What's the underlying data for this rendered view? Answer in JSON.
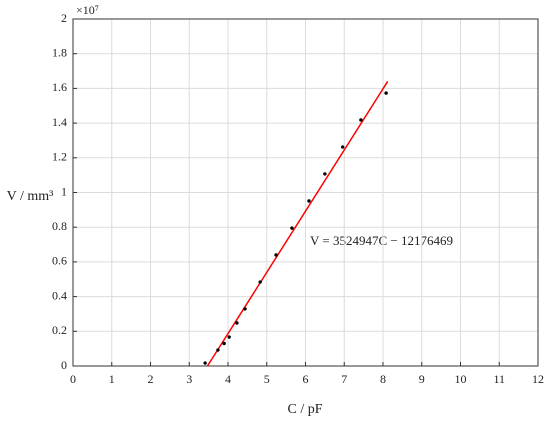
{
  "chart_data": {
    "type": "scatter",
    "x_label": "C / pF",
    "y_label": "V / mm³",
    "y_multiplier": "×10⁷",
    "annotation": "V = 3524947C − 12176469",
    "x": [
      3.41,
      3.74,
      3.9,
      4.03,
      4.23,
      4.44,
      4.83,
      5.24,
      5.65,
      6.09,
      6.5,
      6.96,
      7.43,
      8.08
    ],
    "values": [
      0.017,
      0.092,
      0.13,
      0.167,
      0.248,
      0.329,
      0.484,
      0.64,
      0.795,
      0.951,
      1.107,
      1.262,
      1.418,
      1.573
    ],
    "color": "#000000",
    "fit": {
      "x": [
        3.47,
        8.12
      ],
      "values": [
        0,
        1.64
      ],
      "color": "#ff0000"
    },
    "xlim": [
      0,
      12
    ],
    "xticks": [
      0,
      1,
      2,
      3,
      4,
      5,
      6,
      7,
      8,
      9,
      10,
      11,
      12
    ],
    "ylim": [
      0,
      2
    ],
    "yticks": [
      0,
      0.2,
      0.4,
      0.6,
      0.8,
      1,
      1.2,
      1.4,
      1.6,
      1.8,
      2
    ],
    "grid": true
  }
}
